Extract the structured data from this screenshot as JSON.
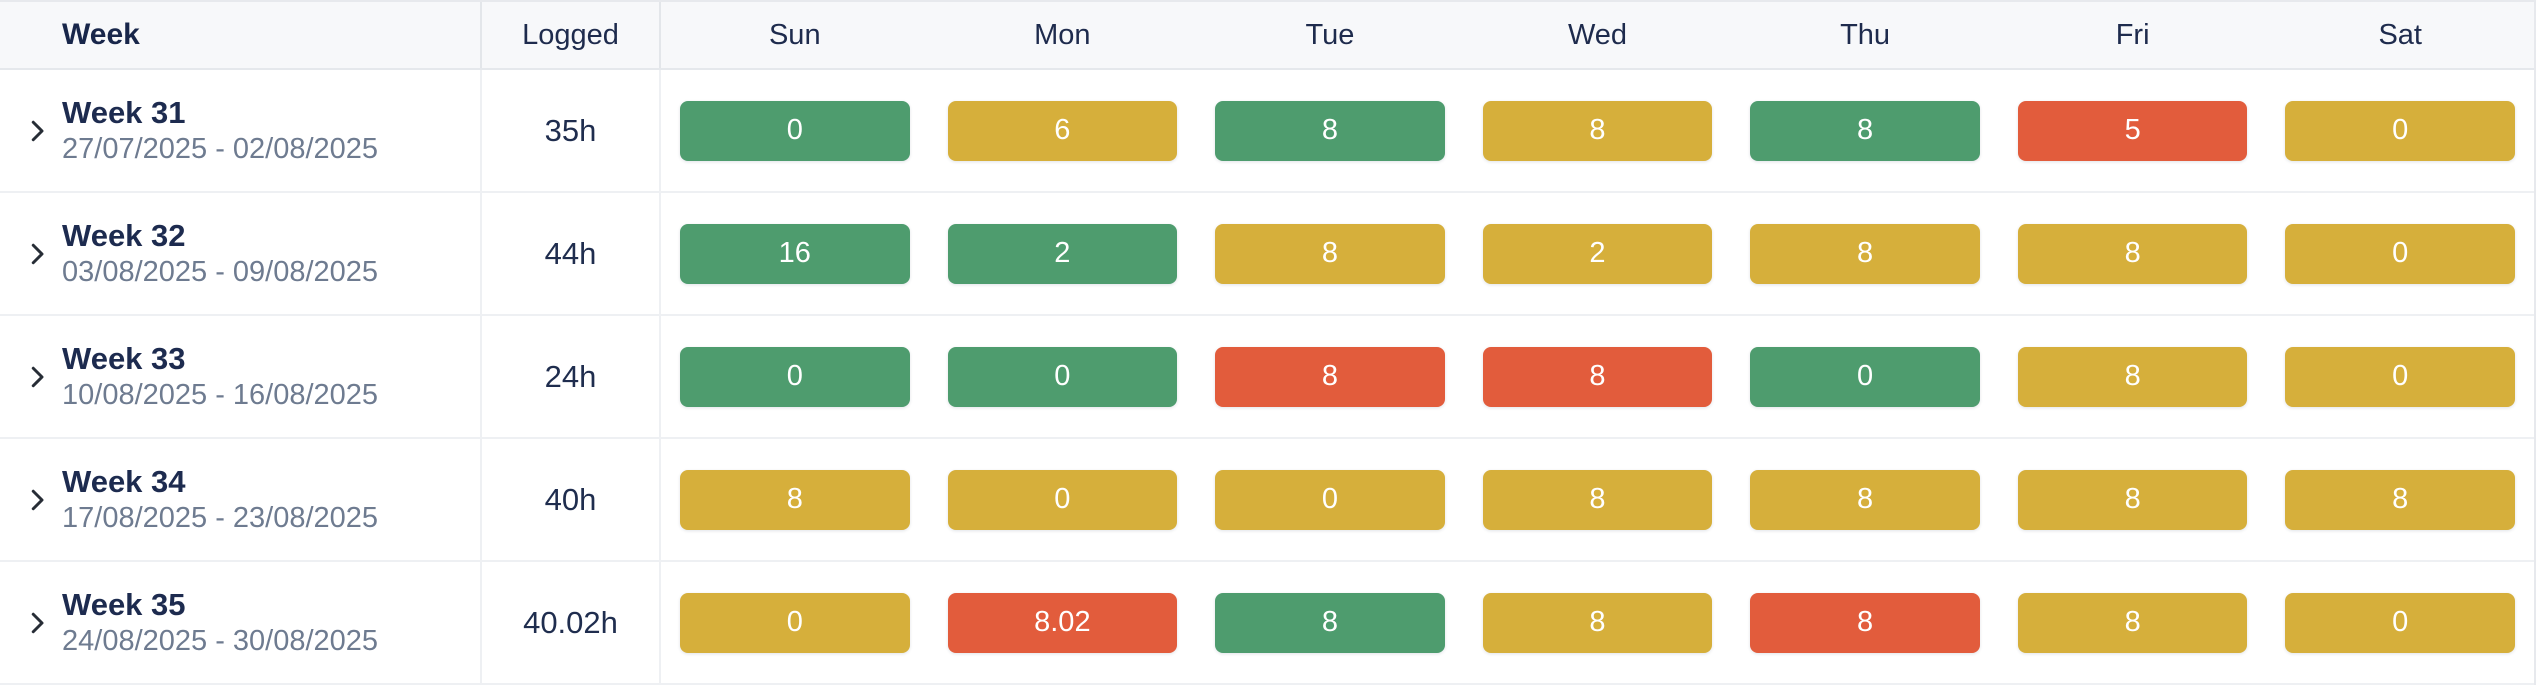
{
  "table": {
    "columns": {
      "week": "Week",
      "logged": "Logged",
      "days": [
        "Sun",
        "Mon",
        "Tue",
        "Wed",
        "Thu",
        "Fri",
        "Sat"
      ]
    },
    "rows": [
      {
        "week": "Week 31",
        "range": "27/07/2025 - 02/08/2025",
        "logged": "35h",
        "days": [
          {
            "value": "0",
            "status": "green"
          },
          {
            "value": "6",
            "status": "yellow"
          },
          {
            "value": "8",
            "status": "green"
          },
          {
            "value": "8",
            "status": "yellow"
          },
          {
            "value": "8",
            "status": "green"
          },
          {
            "value": "5",
            "status": "red"
          },
          {
            "value": "0",
            "status": "yellow"
          }
        ]
      },
      {
        "week": "Week 32",
        "range": "03/08/2025 - 09/08/2025",
        "logged": "44h",
        "days": [
          {
            "value": "16",
            "status": "green"
          },
          {
            "value": "2",
            "status": "green"
          },
          {
            "value": "8",
            "status": "yellow"
          },
          {
            "value": "2",
            "status": "yellow"
          },
          {
            "value": "8",
            "status": "yellow"
          },
          {
            "value": "8",
            "status": "yellow"
          },
          {
            "value": "0",
            "status": "yellow"
          }
        ]
      },
      {
        "week": "Week 33",
        "range": "10/08/2025 - 16/08/2025",
        "logged": "24h",
        "days": [
          {
            "value": "0",
            "status": "green"
          },
          {
            "value": "0",
            "status": "green"
          },
          {
            "value": "8",
            "status": "red"
          },
          {
            "value": "8",
            "status": "red"
          },
          {
            "value": "0",
            "status": "green"
          },
          {
            "value": "8",
            "status": "yellow"
          },
          {
            "value": "0",
            "status": "yellow"
          }
        ]
      },
      {
        "week": "Week 34",
        "range": "17/08/2025 - 23/08/2025",
        "logged": "40h",
        "days": [
          {
            "value": "8",
            "status": "yellow"
          },
          {
            "value": "0",
            "status": "yellow"
          },
          {
            "value": "0",
            "status": "yellow"
          },
          {
            "value": "8",
            "status": "yellow"
          },
          {
            "value": "8",
            "status": "yellow"
          },
          {
            "value": "8",
            "status": "yellow"
          },
          {
            "value": "8",
            "status": "yellow"
          }
        ]
      },
      {
        "week": "Week 35",
        "range": "24/08/2025 - 30/08/2025",
        "logged": "40.02h",
        "days": [
          {
            "value": "0",
            "status": "yellow"
          },
          {
            "value": "8.02",
            "status": "red"
          },
          {
            "value": "8",
            "status": "green"
          },
          {
            "value": "8",
            "status": "yellow"
          },
          {
            "value": "8",
            "status": "red"
          },
          {
            "value": "8",
            "status": "yellow"
          },
          {
            "value": "0",
            "status": "yellow"
          }
        ]
      }
    ]
  },
  "colors": {
    "green": "#4E9C6E",
    "yellow": "#D6AF3B",
    "red": "#E25C3C",
    "header_bg": "#F7F8FA",
    "header_text": "#1E2B4D",
    "range_text": "#6E7B90"
  },
  "icons": {
    "row_expand": "chevron-right-icon"
  }
}
